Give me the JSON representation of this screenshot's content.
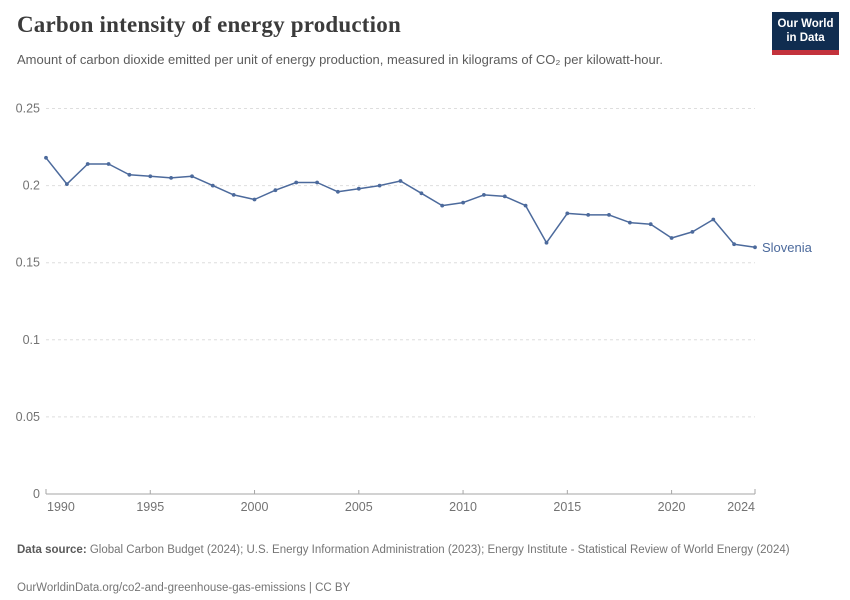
{
  "header": {
    "title": "Carbon intensity of energy production",
    "subtitle": "Amount of carbon dioxide emitted per unit of energy production, measured in kilograms of CO₂ per kilowatt-hour."
  },
  "logo": {
    "line1": "Our World",
    "line2": "in Data"
  },
  "colors": {
    "line": "#4c6a9c",
    "entity_label": "#4c6a9c",
    "gridline": "#dedede",
    "axis": "#a6a6a6",
    "tick_label": "#737373",
    "logo_bg": "#102d50",
    "logo_stripe": "#c3323c"
  },
  "chart_data": {
    "type": "line",
    "title": "Carbon intensity of energy production",
    "ylabel": "",
    "xlabel": "",
    "ylim": [
      0,
      0.25
    ],
    "grid": "horizontal-dashed",
    "legend_position": "end-of-line-label",
    "yticks": [
      0,
      0.05,
      0.1,
      0.15,
      0.2,
      0.25
    ],
    "ytick_labels": [
      "0",
      "0.05",
      "0.1",
      "0.15",
      "0.2",
      "0.25"
    ],
    "xticks": [
      1990,
      1995,
      2000,
      2005,
      2010,
      2015,
      2020,
      2024
    ],
    "x": [
      1990,
      1991,
      1992,
      1993,
      1994,
      1995,
      1996,
      1997,
      1998,
      1999,
      2000,
      2001,
      2002,
      2003,
      2004,
      2005,
      2006,
      2007,
      2008,
      2009,
      2010,
      2011,
      2012,
      2013,
      2014,
      2015,
      2016,
      2017,
      2018,
      2019,
      2020,
      2021,
      2022,
      2023,
      2024
    ],
    "series": [
      {
        "name": "Slovenia",
        "color": "#4c6a9c",
        "values": [
          0.218,
          0.201,
          0.214,
          0.214,
          0.207,
          0.206,
          0.205,
          0.206,
          0.2,
          0.194,
          0.191,
          0.197,
          0.202,
          0.202,
          0.196,
          0.198,
          0.2,
          0.203,
          0.195,
          0.187,
          0.189,
          0.194,
          0.193,
          0.187,
          0.163,
          0.182,
          0.181,
          0.181,
          0.176,
          0.175,
          0.166,
          0.17,
          0.178,
          0.162,
          0.16
        ]
      }
    ]
  },
  "footer": {
    "source_label": "Data source:",
    "source_text": " Global Carbon Budget (2024); U.S. Energy Information Administration (2023); Energy Institute - Statistical Review of World Energy (2024)",
    "url": "OurWorldinData.org/co2-and-greenhouse-gas-emissions",
    "separator": " | ",
    "license": "CC BY"
  }
}
